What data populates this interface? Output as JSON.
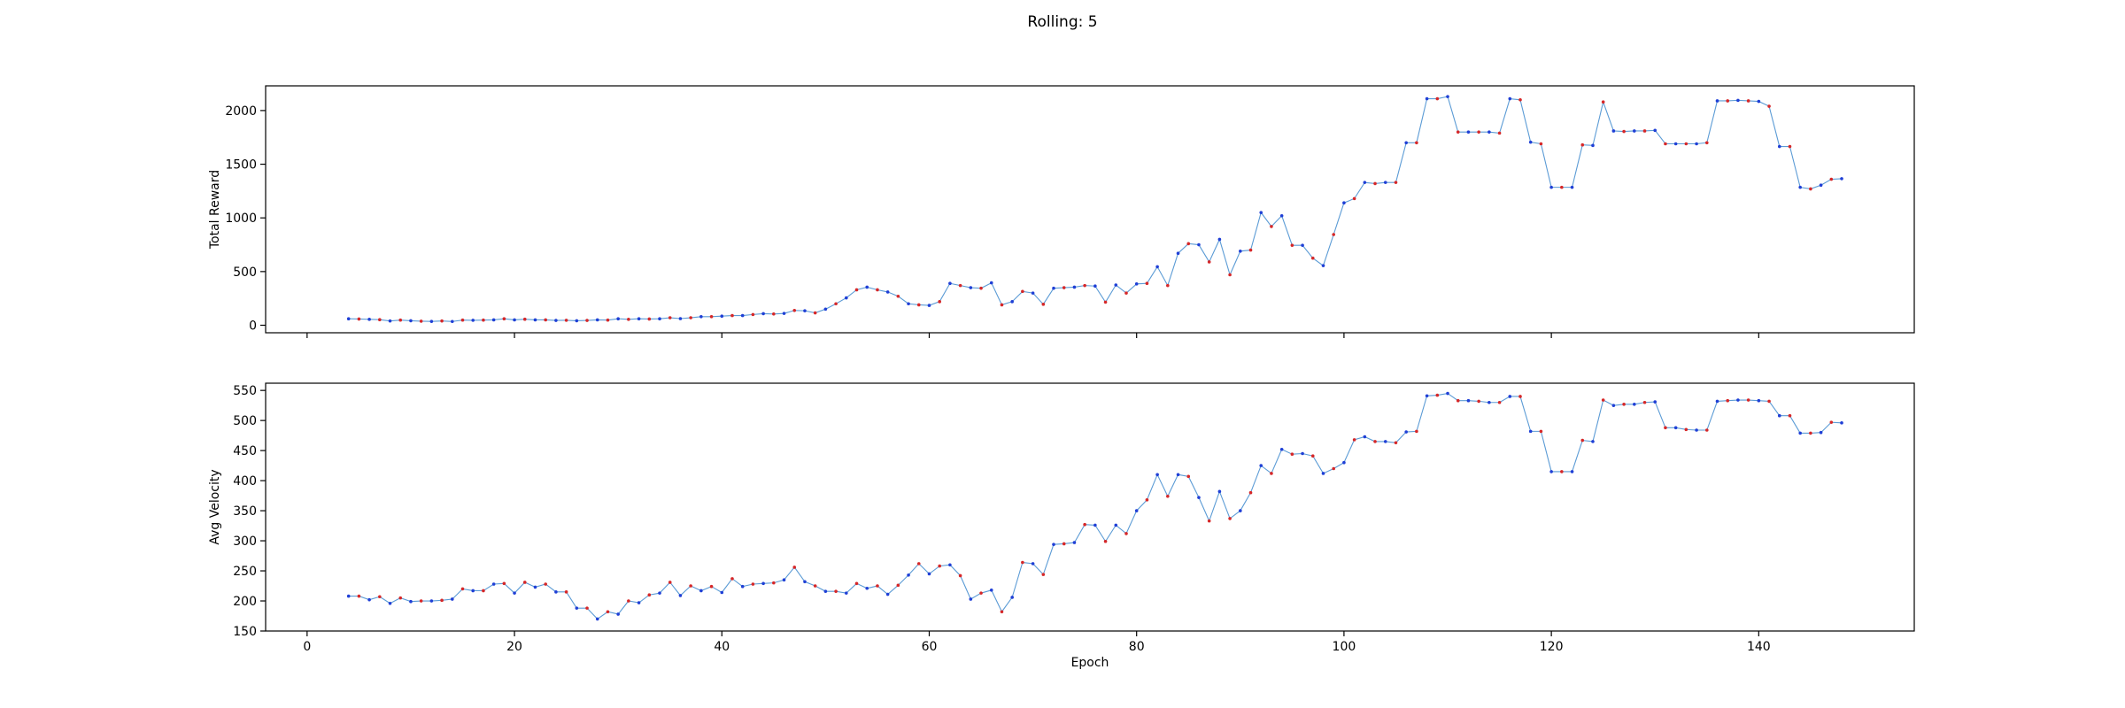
{
  "figure": {
    "title": "Rolling: 5"
  },
  "colors": {
    "line": "#5b9bd5",
    "marker_even": "#1f3fd6",
    "marker_odd": "#d62728",
    "axis": "#000000",
    "background": "#ffffff"
  },
  "chart_data": [
    {
      "type": "line",
      "title": "",
      "xlabel": "",
      "ylabel": "Total Reward",
      "xlim": [
        -4,
        155
      ],
      "ylim": [
        -70,
        2230
      ],
      "xticks": [
        0,
        20,
        40,
        60,
        80,
        100,
        120,
        140
      ],
      "yticks": [
        0,
        500,
        1000,
        1500,
        2000
      ],
      "show_xticklabels": false,
      "grid": false,
      "markers": "alternating blue/red dots",
      "x": [
        4,
        5,
        6,
        7,
        8,
        9,
        10,
        11,
        12,
        13,
        14,
        15,
        16,
        17,
        18,
        19,
        20,
        21,
        22,
        23,
        24,
        25,
        26,
        27,
        28,
        29,
        30,
        31,
        32,
        33,
        34,
        35,
        36,
        37,
        38,
        39,
        40,
        41,
        42,
        43,
        44,
        45,
        46,
        47,
        48,
        49,
        50,
        51,
        52,
        53,
        54,
        55,
        56,
        57,
        58,
        59,
        60,
        61,
        62,
        63,
        64,
        65,
        66,
        67,
        68,
        69,
        70,
        71,
        72,
        73,
        74,
        75,
        76,
        77,
        78,
        79,
        80,
        81,
        82,
        83,
        84,
        85,
        86,
        87,
        88,
        89,
        90,
        91,
        92,
        93,
        94,
        95,
        96,
        97,
        98,
        99,
        100,
        101,
        102,
        103,
        104,
        105,
        106,
        107,
        108,
        109,
        110,
        111,
        112,
        113,
        114,
        115,
        116,
        117,
        118,
        119,
        120,
        121,
        122,
        123,
        124,
        125,
        126,
        127,
        128,
        129,
        130,
        131,
        132,
        133,
        134,
        135,
        136,
        137,
        138,
        139,
        140,
        141,
        142,
        143,
        144,
        145,
        146,
        147,
        148
      ],
      "y": [
        60,
        58,
        55,
        52,
        40,
        48,
        42,
        38,
        36,
        40,
        35,
        48,
        46,
        48,
        50,
        60,
        50,
        56,
        50,
        50,
        45,
        46,
        42,
        45,
        50,
        48,
        60,
        55,
        60,
        58,
        60,
        70,
        62,
        70,
        80,
        80,
        85,
        90,
        90,
        100,
        108,
        105,
        110,
        138,
        135,
        115,
        150,
        200,
        255,
        330,
        355,
        330,
        310,
        270,
        200,
        190,
        185,
        220,
        390,
        370,
        350,
        345,
        395,
        190,
        220,
        315,
        300,
        195,
        345,
        350,
        355,
        370,
        365,
        215,
        375,
        300,
        385,
        390,
        545,
        370,
        670,
        760,
        750,
        590,
        800,
        470,
        690,
        700,
        1050,
        920,
        1020,
        745,
        745,
        625,
        555,
        845,
        1140,
        1180,
        1330,
        1320,
        1330,
        1330,
        1700,
        1700,
        2110,
        2110,
        2130,
        1800,
        1800,
        1800,
        1800,
        1790,
        2110,
        2100,
        1705,
        1690,
        1285,
        1285,
        1285,
        1680,
        1675,
        2080,
        1810,
        1805,
        1810,
        1810,
        1815,
        1690,
        1690,
        1690,
        1690,
        1700,
        2090,
        2090,
        2095,
        2090,
        2085,
        2040,
        1665,
        1665,
        1285,
        1270,
        1305,
        1360,
        1365
      ]
    },
    {
      "type": "line",
      "title": "",
      "xlabel": "Epoch",
      "ylabel": "Avg Velocity",
      "xlim": [
        -4,
        155
      ],
      "ylim": [
        150,
        562
      ],
      "xticks": [
        0,
        20,
        40,
        60,
        80,
        100,
        120,
        140
      ],
      "yticks": [
        150,
        200,
        250,
        300,
        350,
        400,
        450,
        500,
        550
      ],
      "show_xticklabels": true,
      "grid": false,
      "markers": "alternating blue/red dots",
      "x": [
        4,
        5,
        6,
        7,
        8,
        9,
        10,
        11,
        12,
        13,
        14,
        15,
        16,
        17,
        18,
        19,
        20,
        21,
        22,
        23,
        24,
        25,
        26,
        27,
        28,
        29,
        30,
        31,
        32,
        33,
        34,
        35,
        36,
        37,
        38,
        39,
        40,
        41,
        42,
        43,
        44,
        45,
        46,
        47,
        48,
        49,
        50,
        51,
        52,
        53,
        54,
        55,
        56,
        57,
        58,
        59,
        60,
        61,
        62,
        63,
        64,
        65,
        66,
        67,
        68,
        69,
        70,
        71,
        72,
        73,
        74,
        75,
        76,
        77,
        78,
        79,
        80,
        81,
        82,
        83,
        84,
        85,
        86,
        87,
        88,
        89,
        90,
        91,
        92,
        93,
        94,
        95,
        96,
        97,
        98,
        99,
        100,
        101,
        102,
        103,
        104,
        105,
        106,
        107,
        108,
        109,
        110,
        111,
        112,
        113,
        114,
        115,
        116,
        117,
        118,
        119,
        120,
        121,
        122,
        123,
        124,
        125,
        126,
        127,
        128,
        129,
        130,
        131,
        132,
        133,
        134,
        135,
        136,
        137,
        138,
        139,
        140,
        141,
        142,
        143,
        144,
        145,
        146,
        147,
        148
      ],
      "y": [
        208,
        208,
        202,
        207,
        196,
        205,
        199,
        200,
        200,
        201,
        203,
        220,
        217,
        217,
        228,
        229,
        213,
        231,
        223,
        228,
        215,
        215,
        188,
        188,
        170,
        182,
        178,
        200,
        197,
        210,
        213,
        231,
        209,
        225,
        217,
        224,
        214,
        237,
        224,
        228,
        229,
        230,
        235,
        256,
        232,
        225,
        216,
        216,
        213,
        229,
        221,
        225,
        211,
        226,
        243,
        262,
        245,
        258,
        260,
        242,
        203,
        213,
        218,
        182,
        206,
        264,
        262,
        244,
        294,
        295,
        297,
        327,
        326,
        299,
        326,
        312,
        350,
        368,
        410,
        374,
        410,
        407,
        372,
        333,
        382,
        337,
        350,
        380,
        425,
        412,
        452,
        444,
        445,
        441,
        412,
        420,
        430,
        468,
        473,
        465,
        465,
        463,
        481,
        482,
        541,
        542,
        545,
        533,
        533,
        532,
        530,
        530,
        540,
        540,
        482,
        482,
        415,
        415,
        415,
        467,
        465,
        534,
        525,
        527,
        527,
        530,
        531,
        488,
        488,
        485,
        484,
        484,
        532,
        533,
        534,
        534,
        533,
        532,
        508,
        508,
        479,
        479,
        480,
        497,
        496
      ]
    }
  ]
}
